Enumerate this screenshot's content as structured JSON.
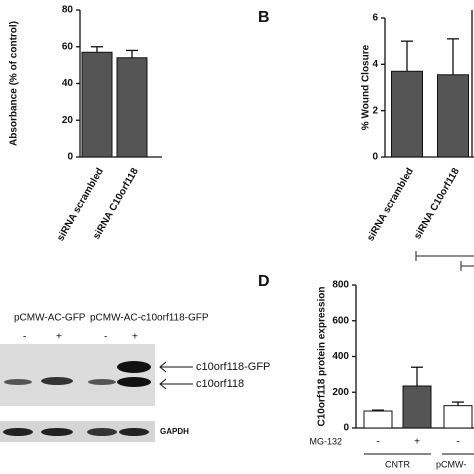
{
  "chart_data": [
    {
      "type": "bar",
      "ylabel": "Absorbance (% of control)",
      "categories": [
        "siRNA scrambled",
        "siRNA C10orf118"
      ],
      "values": [
        57,
        54
      ],
      "errors": [
        3,
        4
      ],
      "colors": [
        "#555555",
        "#555555"
      ],
      "ylim": [
        0,
        80
      ],
      "yticks": [
        0,
        20,
        40,
        60,
        80
      ]
    },
    {
      "type": "bar",
      "panel": "B",
      "ylabel": "% Wound Closure",
      "categories": [
        "siRNA scrambled",
        "siRNA C10orf118"
      ],
      "values": [
        3.7,
        3.55
      ],
      "errors": [
        1.3,
        1.55
      ],
      "colors": [
        "#555555",
        "#555555"
      ],
      "ylim": [
        0,
        6
      ],
      "yticks": [
        0,
        2,
        4,
        6
      ]
    },
    {
      "type": "bar",
      "panel": "D",
      "ylabel": "C10orf118 protein expression",
      "categories": [
        "-",
        "+",
        "-"
      ],
      "values": [
        95,
        235,
        125
      ],
      "errors": [
        5,
        105,
        20
      ],
      "colors": [
        "#ffffff",
        "#555555",
        "#ffffff"
      ],
      "ylim": [
        0,
        800
      ],
      "yticks": [
        0,
        200,
        400,
        600,
        800
      ],
      "treatment": "MG-132",
      "groups": [
        "CNTR",
        "pCMW-"
      ]
    }
  ],
  "blot": {
    "labels": [
      "pCMW-AC-GFP",
      "pCMW-AC-c10orf118-GFP"
    ],
    "treatments": [
      "-",
      "+",
      "-",
      "+"
    ],
    "bands": [
      "c10orf118-GFP",
      "c10orf118"
    ],
    "loading": "GAPDH"
  }
}
